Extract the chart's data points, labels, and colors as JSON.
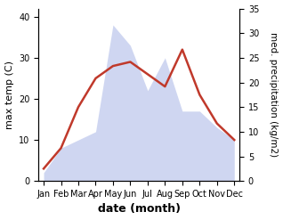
{
  "months": [
    "Jan",
    "Feb",
    "Mar",
    "Apr",
    "May",
    "Jun",
    "Jul",
    "Aug",
    "Sep",
    "Oct",
    "Nov",
    "Dec"
  ],
  "temperature": [
    3,
    8,
    18,
    25,
    28,
    29,
    26,
    23,
    32,
    21,
    14,
    10
  ],
  "precipitation": [
    2,
    8,
    10,
    12,
    38,
    33,
    22,
    30,
    17,
    17,
    13,
    10
  ],
  "temp_color": "#c0392b",
  "precip_fill_color": "#b0bce8",
  "precip_alpha": 0.6,
  "xlabel": "date (month)",
  "ylabel_left": "max temp (C)",
  "ylabel_right": "med. precipitation (kg/m2)",
  "ylim_left": [
    0,
    42
  ],
  "ylim_right": [
    0,
    35
  ],
  "yticks_left": [
    0,
    10,
    20,
    30,
    40
  ],
  "yticks_right": [
    0,
    5,
    10,
    15,
    20,
    25,
    30,
    35
  ],
  "background_color": "#ffffff",
  "line_width": 1.8,
  "tick_fontsize": 7,
  "label_fontsize": 8,
  "xlabel_fontsize": 9
}
